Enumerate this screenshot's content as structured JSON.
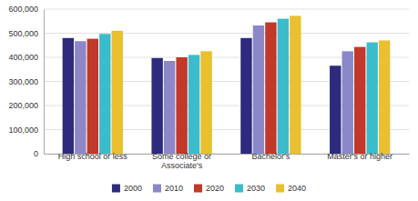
{
  "chart_data": {
    "type": "bar",
    "categories": [
      "High school or less",
      "Some college or\nAssociate's",
      "Bachelor's",
      "Master's or higher"
    ],
    "series": [
      {
        "name": "2000",
        "color": "#2e2a7c",
        "values": [
          480000,
          397000,
          480000,
          365000
        ]
      },
      {
        "name": "2010",
        "color": "#8b87c8",
        "values": [
          467000,
          385000,
          532000,
          425000
        ]
      },
      {
        "name": "2020",
        "color": "#c0392b",
        "values": [
          477000,
          400000,
          545000,
          443000
        ]
      },
      {
        "name": "2030",
        "color": "#3bbccc",
        "values": [
          497000,
          410000,
          560000,
          462000
        ]
      },
      {
        "name": "2040",
        "color": "#e8c030",
        "values": [
          510000,
          425000,
          572000,
          470000
        ]
      }
    ],
    "ylim": [
      0,
      600000
    ],
    "yticks": [
      0,
      {
        "value": 100000,
        "label": "100,000"
      },
      {
        "value": 200000,
        "label": "200,000"
      },
      {
        "value": 300000,
        "label": "300,000"
      },
      {
        "value": 400000,
        "label": "400,000"
      },
      {
        "value": 500000,
        "label": "500,000"
      },
      {
        "value": 600000,
        "label": "600,000"
      }
    ],
    "grid": true,
    "legend": "bottom"
  }
}
